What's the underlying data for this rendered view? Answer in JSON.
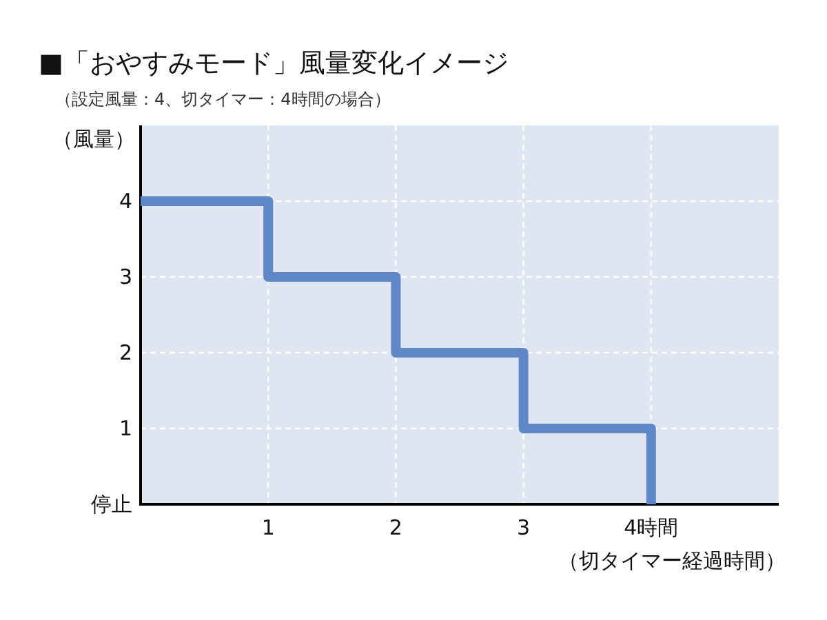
{
  "chart_data": {
    "type": "step",
    "title": "■「おやすみモード」風量変化イメージ",
    "subtitle": "（設定風量：4、切タイマー：4時間の場合）",
    "ylabel": "（風量）",
    "xlabel": "（切タイマー経過時間）",
    "x": [
      0,
      1,
      2,
      3,
      4
    ],
    "series": [
      {
        "color": "#5f86c6",
        "values": [
          4,
          3,
          2,
          1,
          0
        ]
      }
    ],
    "xlim": [
      0,
      5
    ],
    "xticks": [
      1,
      2,
      3,
      {
        "value": 4,
        "label": "4時間"
      }
    ],
    "ylim": [
      0,
      5
    ],
    "yticks": [
      {
        "value": 0,
        "label": "停止"
      },
      1,
      2,
      3,
      4
    ],
    "grid": true
  }
}
